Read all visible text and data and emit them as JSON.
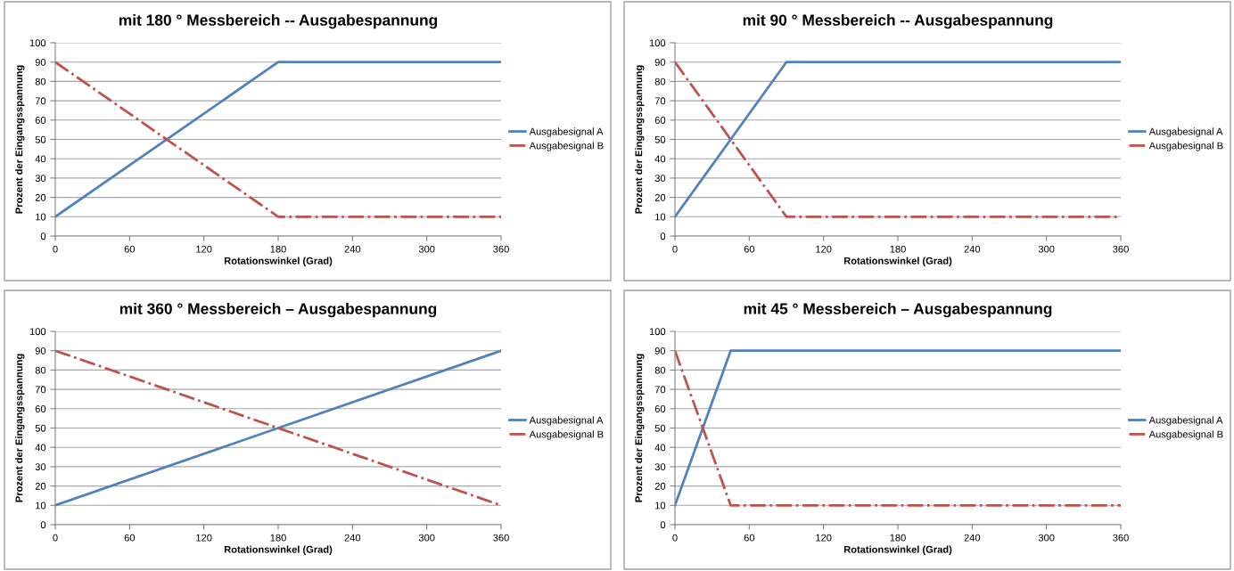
{
  "chart_data": [
    {
      "type": "line",
      "title": "mit 180 ° Messbereich -- Ausgabespannung",
      "xlabel": "Rotationswinkel (Grad)",
      "ylabel": "Prozent der Eingangsspannung",
      "xlim": [
        0,
        360
      ],
      "xticks": [
        0,
        60,
        120,
        180,
        240,
        300,
        360
      ],
      "ylim": [
        0,
        100
      ],
      "yticks": [
        0,
        10,
        20,
        30,
        40,
        50,
        60,
        70,
        80,
        90,
        100
      ],
      "grid": "y",
      "legend": "right",
      "marker": "none",
      "series": [
        {
          "name": "Ausgabesignal A",
          "color": "#4f81bd",
          "line_style": "solid",
          "x": [
            0,
            180,
            360
          ],
          "values": [
            10,
            90,
            90
          ]
        },
        {
          "name": "Ausgabesignal B",
          "color": "#c0504d",
          "line_style": "dashdot",
          "x": [
            0,
            180,
            360
          ],
          "values": [
            90,
            10,
            10
          ]
        }
      ]
    },
    {
      "type": "line",
      "title": "mit 90 ° Messbereich -- Ausgabespannung",
      "xlabel": "Rotationswinkel (Grad)",
      "ylabel": "Prozent der Eingangsspannung",
      "xlim": [
        0,
        360
      ],
      "xticks": [
        0,
        60,
        120,
        180,
        240,
        300,
        360
      ],
      "ylim": [
        0,
        100
      ],
      "yticks": [
        0,
        10,
        20,
        30,
        40,
        50,
        60,
        70,
        80,
        90,
        100
      ],
      "grid": "y",
      "legend": "right",
      "marker": "none",
      "series": [
        {
          "name": "Ausgabesignal A",
          "color": "#4f81bd",
          "line_style": "solid",
          "x": [
            0,
            90,
            360
          ],
          "values": [
            10,
            90,
            90
          ]
        },
        {
          "name": "Ausgabesignal B",
          "color": "#c0504d",
          "line_style": "dashdot",
          "x": [
            0,
            90,
            360
          ],
          "values": [
            90,
            10,
            10
          ]
        }
      ]
    },
    {
      "type": "line",
      "title": "mit 360 ° Messbereich – Ausgabespannung",
      "xlabel": "Rotationswinkel (Grad)",
      "ylabel": "Prozent der Eingangsspannung",
      "xlim": [
        0,
        360
      ],
      "xticks": [
        0,
        60,
        120,
        180,
        240,
        300,
        360
      ],
      "ylim": [
        0,
        100
      ],
      "yticks": [
        0,
        10,
        20,
        30,
        40,
        50,
        60,
        70,
        80,
        90,
        100
      ],
      "grid": "y",
      "legend": "right",
      "marker": "none",
      "series": [
        {
          "name": "Ausgabesignal A",
          "color": "#4f81bd",
          "line_style": "solid",
          "x": [
            0,
            360
          ],
          "values": [
            10,
            90
          ]
        },
        {
          "name": "Ausgabesignal B",
          "color": "#c0504d",
          "line_style": "dashdot",
          "x": [
            0,
            360
          ],
          "values": [
            90,
            10
          ]
        }
      ]
    },
    {
      "type": "line",
      "title": "mit 45 ° Messbereich – Ausgabespannung",
      "xlabel": "Rotationswinkel (Grad)",
      "ylabel": "Prozent der Eingangsspannung",
      "xlim": [
        0,
        360
      ],
      "xticks": [
        0,
        60,
        120,
        180,
        240,
        300,
        360
      ],
      "ylim": [
        0,
        100
      ],
      "yticks": [
        0,
        10,
        20,
        30,
        40,
        50,
        60,
        70,
        80,
        90,
        100
      ],
      "grid": "y",
      "legend": "right",
      "marker": "none",
      "series": [
        {
          "name": "Ausgabesignal A",
          "color": "#4f81bd",
          "line_style": "solid",
          "x": [
            0,
            45,
            360
          ],
          "values": [
            10,
            90,
            90
          ]
        },
        {
          "name": "Ausgabesignal B",
          "color": "#c0504d",
          "line_style": "dashdot",
          "x": [
            0,
            45,
            360
          ],
          "values": [
            90,
            10,
            10
          ]
        }
      ]
    }
  ]
}
